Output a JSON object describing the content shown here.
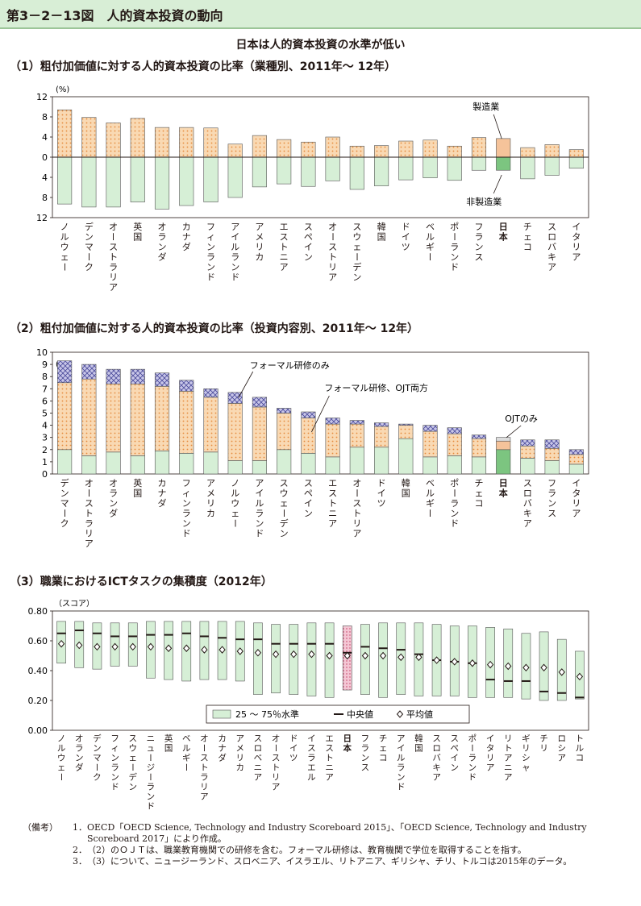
{
  "figure_label": "第3－2－13図　人的資本投資の動向",
  "headline": "日本は人的資本投資の水準が低い",
  "chart_data": [
    {
      "type": "bar",
      "title": "（1）粗付加価値に対する人的資本投資の比率（業種別、2011年～ 12年）",
      "unit": "(%)",
      "ylim": [
        -12,
        12
      ],
      "yticks": [
        "12",
        "8",
        "4",
        "0",
        "4",
        "8",
        "12"
      ],
      "categories": [
        "ノルウェー",
        "デンマーク",
        "オーストラリア",
        "英国",
        "オランダ",
        "カナダ",
        "フィンランド",
        "アイルランド",
        "アメリカ",
        "エストニア",
        "スペイン",
        "オーストリア",
        "スウェーデン",
        "韓国",
        "ドイツ",
        "ベルギー",
        "ポーランド",
        "フランス",
        "日本",
        "チェコ",
        "スロバキア",
        "イタリア"
      ],
      "highlight": "日本",
      "series": [
        {
          "name": "製造業",
          "values": [
            9.4,
            7.9,
            6.8,
            7.7,
            5.9,
            5.9,
            5.8,
            2.6,
            4.3,
            3.5,
            3.0,
            4.0,
            2.2,
            2.3,
            3.2,
            3.4,
            2.2,
            3.9,
            3.7,
            1.9,
            2.5,
            1.5
          ]
        },
        {
          "name": "非製造業",
          "values": [
            9.3,
            9.9,
            9.9,
            8.9,
            10.3,
            9.6,
            8.9,
            8.0,
            5.9,
            5.3,
            5.8,
            4.7,
            6.4,
            5.7,
            4.5,
            4.1,
            4.6,
            2.6,
            2.6,
            4.3,
            3.6,
            2.2
          ]
        }
      ],
      "colors": {
        "manufacturing": "#f9d9b3",
        "non_manufacturing": "#d6efd6",
        "japan_upper": "#f5c39a",
        "japan_lower": "#7cc580"
      }
    },
    {
      "type": "bar",
      "title": "（2）粗付加価値に対する人的資本投資の比率（投資内容別、2011年～ 12年）",
      "unit": "(%)",
      "ylim": [
        0,
        10
      ],
      "categories": [
        "デンマーク",
        "オーストラリア",
        "オランダ",
        "英国",
        "カナダ",
        "フィンランド",
        "アメリカ",
        "ノルウェー",
        "アイルランド",
        "スウェーデン",
        "スペイン",
        "エストニア",
        "オーストリア",
        "ドイツ",
        "韓国",
        "ベルギー",
        "ポーランド",
        "チェコ",
        "日本",
        "スロバキア",
        "フランス",
        "イタリア"
      ],
      "highlight": "日本",
      "series": [
        {
          "name": "フォーマル研修のみ",
          "values": [
            2.0,
            1.5,
            1.8,
            1.5,
            1.9,
            1.7,
            1.8,
            1.1,
            1.1,
            2.0,
            1.7,
            1.4,
            2.2,
            2.2,
            2.9,
            1.4,
            1.5,
            1.4,
            2.0,
            1.3,
            1.1,
            0.8
          ]
        },
        {
          "name": "フォーマル研修、OJT両方",
          "values": [
            5.5,
            6.3,
            5.6,
            5.9,
            5.3,
            5.1,
            4.5,
            4.7,
            4.4,
            3.0,
            2.9,
            2.7,
            1.9,
            1.7,
            1.1,
            2.1,
            1.8,
            1.5,
            0.7,
            1.0,
            1.0,
            0.8
          ]
        },
        {
          "name": "OJTのみ",
          "values": [
            1.8,
            1.2,
            1.2,
            1.2,
            1.1,
            0.9,
            0.7,
            0.9,
            0.8,
            0.4,
            0.5,
            0.5,
            0.3,
            0.3,
            0.1,
            0.5,
            0.5,
            0.3,
            0.3,
            0.5,
            0.7,
            0.4
          ]
        }
      ],
      "colors": {
        "formal_only": "#d6efd6",
        "both": "#f9d9b3",
        "ojt_only": "#c8c6e8",
        "japan_formal": "#7cc580",
        "japan_both": "#f5c39a",
        "japan_ojt": "#dcdcdc"
      }
    },
    {
      "type": "box",
      "title": "（3）職業におけるICTタスクの集積度（2012年）",
      "unit": "（スコア）",
      "ylim": [
        0,
        0.8
      ],
      "yticks": [
        "0.80",
        "0.60",
        "0.40",
        "0.20",
        "0.00"
      ],
      "categories": [
        "ノルウェー",
        "オランダ",
        "デンマーク",
        "フィンランド",
        "スウェーデン",
        "ニュージーランド",
        "英国",
        "ベルギー",
        "オーストラリア",
        "カナダ",
        "アメリカ",
        "スロベニア",
        "オーストリア",
        "ドイツ",
        "イスラエル",
        "エストニア",
        "日本",
        "フランス",
        "チェコ",
        "アイルランド",
        "韓国",
        "スロバキア",
        "スペイン",
        "ポーランド",
        "イタリア",
        "リトアニア",
        "ギリシャ",
        "チリ",
        "ロシア",
        "トルコ"
      ],
      "highlight": "日本",
      "series": [
        {
          "name": "25～75%水準",
          "q1": [
            0.45,
            0.42,
            0.41,
            0.43,
            0.43,
            0.35,
            0.34,
            0.33,
            0.34,
            0.34,
            0.33,
            0.24,
            0.25,
            0.24,
            0.23,
            0.22,
            0.27,
            0.24,
            0.22,
            0.24,
            0.23,
            0.23,
            0.23,
            0.22,
            0.22,
            0.22,
            0.21,
            0.2,
            0.2,
            0.21
          ],
          "q3": [
            0.73,
            0.73,
            0.72,
            0.72,
            0.72,
            0.73,
            0.73,
            0.73,
            0.73,
            0.73,
            0.73,
            0.72,
            0.71,
            0.71,
            0.72,
            0.72,
            0.7,
            0.71,
            0.72,
            0.72,
            0.72,
            0.71,
            0.7,
            0.7,
            0.69,
            0.68,
            0.65,
            0.66,
            0.61,
            0.53
          ]
        },
        {
          "name": "中央値",
          "values": [
            0.65,
            0.67,
            0.65,
            0.63,
            0.63,
            0.64,
            0.64,
            0.65,
            0.63,
            0.62,
            0.61,
            0.61,
            0.58,
            0.58,
            0.58,
            0.58,
            0.52,
            0.56,
            0.55,
            0.54,
            0.51,
            0.47,
            0.46,
            0.45,
            0.34,
            0.33,
            0.33,
            0.26,
            0.25,
            0.22
          ]
        },
        {
          "name": "平均値",
          "values": [
            0.58,
            0.57,
            0.56,
            0.56,
            0.56,
            0.56,
            0.55,
            0.55,
            0.54,
            0.54,
            0.53,
            0.52,
            0.51,
            0.51,
            0.51,
            0.5,
            0.5,
            0.5,
            0.5,
            0.49,
            0.49,
            0.47,
            0.46,
            0.45,
            0.44,
            0.43,
            0.42,
            0.42,
            0.39,
            0.36
          ]
        }
      ],
      "colors": {
        "box": "#d6efd6",
        "japan_box": "#f4c6d4"
      }
    }
  ],
  "annotations": {
    "p1": {
      "manufacturing": "製造業",
      "non_manufacturing": "非製造業"
    },
    "p2": {
      "formal_only": "フォーマル研修のみ",
      "both": "フォーマル研修、OJT両方",
      "ojt_only": "OJTのみ"
    },
    "p3_legend": {
      "box": "25 ～ 75％水準",
      "median": "中央値",
      "mean": "平均値"
    }
  },
  "notes": {
    "label": "（備考）",
    "items": [
      {
        "num": "1．",
        "text": "OECD「OECD Science, Technology and Industry Scoreboard 2015」、「OECD Science, Technology and Industry Scoreboard 2017」により作成。"
      },
      {
        "num": "2．",
        "text": "（2）のＯＪＴは、職業教育機関での研修を含む。フォーマル研修は、教育機関で学位を取得することを指す。"
      },
      {
        "num": "3．",
        "text": "（3）について、ニュージーランド、スロベニア、イスラエル、リトアニア、ギリシャ、チリ、トルコは2015年のデータ。"
      }
    ]
  }
}
